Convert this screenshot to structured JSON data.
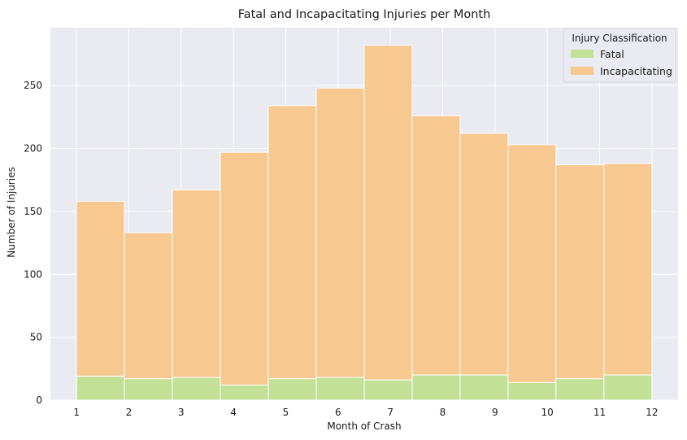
{
  "chart_data": {
    "type": "bar",
    "stacked": true,
    "title": "Fatal and Incapacitating Injuries per Month",
    "xlabel": "Month of Crash",
    "ylabel": "Number of Injuries",
    "xlim": [
      0.5,
      12.5
    ],
    "ylim": [
      0,
      296
    ],
    "xticks": [
      1,
      2,
      3,
      4,
      5,
      6,
      7,
      8,
      9,
      10,
      11,
      12
    ],
    "yticks": [
      0,
      50,
      100,
      150,
      200,
      250
    ],
    "grid": true,
    "background": "#eaeaf2",
    "bin_edges": [
      1.0,
      1.9167,
      2.8333,
      3.75,
      4.6667,
      5.5833,
      6.5,
      7.4167,
      8.3333,
      9.25,
      10.1667,
      11.0833,
      12.0
    ],
    "series": [
      {
        "name": "Fatal",
        "color": "#c2e196",
        "values": [
          19,
          17,
          18,
          12,
          17,
          18,
          16,
          20,
          20,
          14,
          17,
          20
        ]
      },
      {
        "name": "Incapacitating",
        "color": "#f7c890",
        "values": [
          139,
          116,
          149,
          185,
          217,
          230,
          266,
          206,
          192,
          189,
          170,
          168
        ]
      }
    ],
    "legend": {
      "title": "Injury Classification",
      "position": "top-right"
    }
  }
}
